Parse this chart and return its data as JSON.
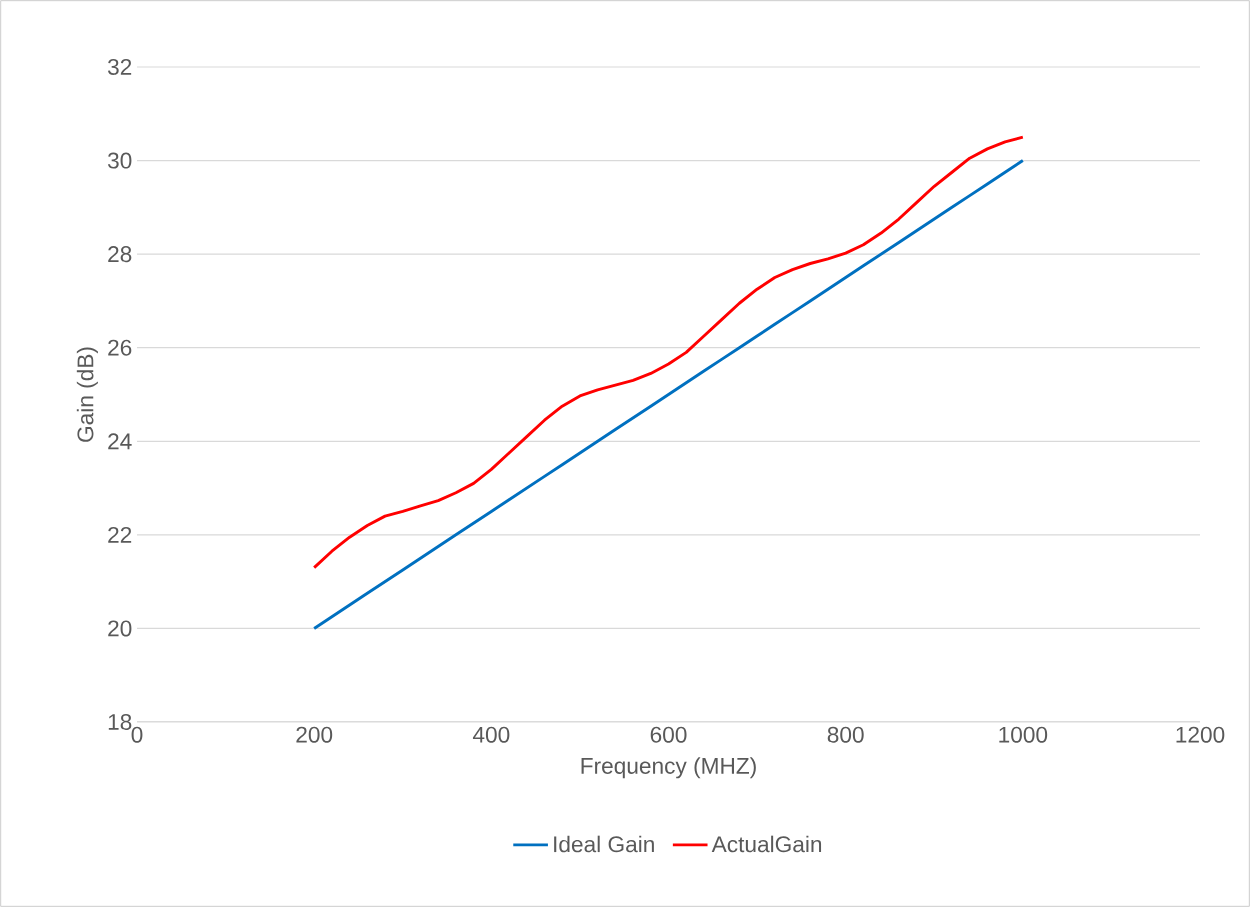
{
  "chart_data": {
    "type": "line",
    "xlabel": "Frequency (MHZ)",
    "ylabel": "Gain (dB)",
    "x": [
      200,
      220,
      240,
      260,
      280,
      300,
      320,
      340,
      360,
      380,
      400,
      420,
      440,
      460,
      480,
      500,
      520,
      540,
      560,
      580,
      600,
      620,
      640,
      660,
      680,
      700,
      720,
      740,
      760,
      780,
      800,
      820,
      840,
      860,
      880,
      900,
      920,
      940,
      960,
      980,
      1000
    ],
    "series": [
      {
        "name": "Ideal Gain",
        "color": "#0070c0",
        "values": [
          20,
          20.25,
          20.5,
          20.75,
          21,
          21.25,
          21.5,
          21.75,
          22,
          22.25,
          22.5,
          22.75,
          23,
          23.25,
          23.5,
          23.75,
          24,
          24.25,
          24.5,
          24.75,
          25,
          25.25,
          25.5,
          25.75,
          26,
          26.25,
          26.5,
          26.75,
          27,
          27.25,
          27.5,
          27.75,
          28,
          28.25,
          28.5,
          28.75,
          29,
          29.25,
          29.5,
          29.75,
          30
        ]
      },
      {
        "name": "ActualGain",
        "color": "#ff0000",
        "values": [
          21.3,
          21.65,
          21.95,
          22.2,
          22.4,
          22.5,
          22.62,
          22.73,
          22.9,
          23.1,
          23.4,
          23.75,
          24.1,
          24.45,
          24.75,
          24.97,
          25.1,
          25.2,
          25.3,
          25.45,
          25.65,
          25.9,
          26.25,
          26.6,
          26.95,
          27.25,
          27.5,
          27.67,
          27.8,
          27.9,
          28.02,
          28.2,
          28.45,
          28.75,
          29.1,
          29.45,
          29.75,
          30.05,
          30.25,
          30.4,
          30.5
        ]
      }
    ],
    "xlim": [
      0,
      1200
    ],
    "xticks": [
      0,
      200,
      400,
      600,
      800,
      1000,
      1200
    ],
    "ylim": [
      18,
      32
    ],
    "yticks": [
      18,
      20,
      22,
      24,
      26,
      28,
      30,
      32
    ],
    "grid": "y",
    "legend": "bottom",
    "marker": "none",
    "line_style": "solid"
  }
}
